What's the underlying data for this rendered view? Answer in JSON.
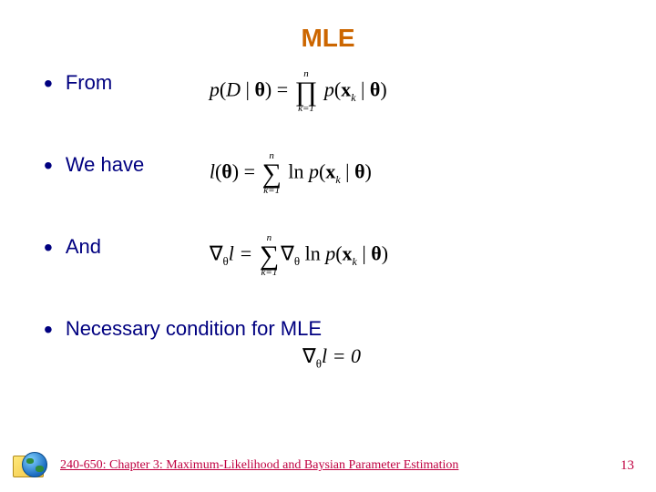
{
  "colors": {
    "title": "#cc6600",
    "bullet_text": "#000080",
    "bullet_dot": "#000080",
    "equation": "#000000",
    "footer_text": "#c00040",
    "page_number": "#c00040",
    "background": "#ffffff"
  },
  "fontsizes": {
    "title_pt": 28,
    "bullet_pt": 22,
    "equation_pt": 22,
    "footer_pt": 14
  },
  "title": "MLE",
  "bullets": [
    {
      "label": "From",
      "eq": "p(D | θ) = ∏_{k=1}^{n} p(x_k | θ)"
    },
    {
      "label": "We have",
      "eq": "l(θ) = ∑_{k=1}^{n} ln p(x_k | θ)"
    },
    {
      "label": "And",
      "eq": "∇_θ l = ∑_{k=1}^{n} ∇_θ ln p(x_k | θ)"
    },
    {
      "label": "Necessary condition for MLE",
      "eq": "∇_θ l = 0"
    }
  ],
  "equations": {
    "eq1_lhs_p": "p",
    "eq1_lhs_open": "(",
    "eq1_D": "D",
    "eq1_bar": " | ",
    "eq1_theta": "θ",
    "eq1_close_eq": ") = ",
    "eq1_prod_top": "n",
    "eq1_prod_sym": "∏",
    "eq1_prod_bot": "k=1",
    "eq1_rhs_p": " p",
    "eq1_x": "x",
    "eq1_k": "k",
    "eq1_close": ")",
    "eq2_l": "l",
    "eq2_open": "(",
    "eq2_close_eq": ") = ",
    "eq2_sum_top": "n",
    "eq2_sum_sym": "∑",
    "eq2_sum_bot": "k=1",
    "eq2_ln": " ln ",
    "eq3_nabla": "∇",
    "eq3_sub_theta": "θ",
    "eq3_l_eq": "l = ",
    "eq3_sum_top": "n",
    "eq3_sum_sym": "∑",
    "eq3_sum_bot": "k=1",
    "eq4_full_nabla": "∇",
    "eq4_l_eq_0": "l = 0"
  },
  "footer": {
    "course_text": "240-650: Chapter 3: Maximum-Likelihood and Baysian Parameter Estimation",
    "page_number": "13"
  }
}
